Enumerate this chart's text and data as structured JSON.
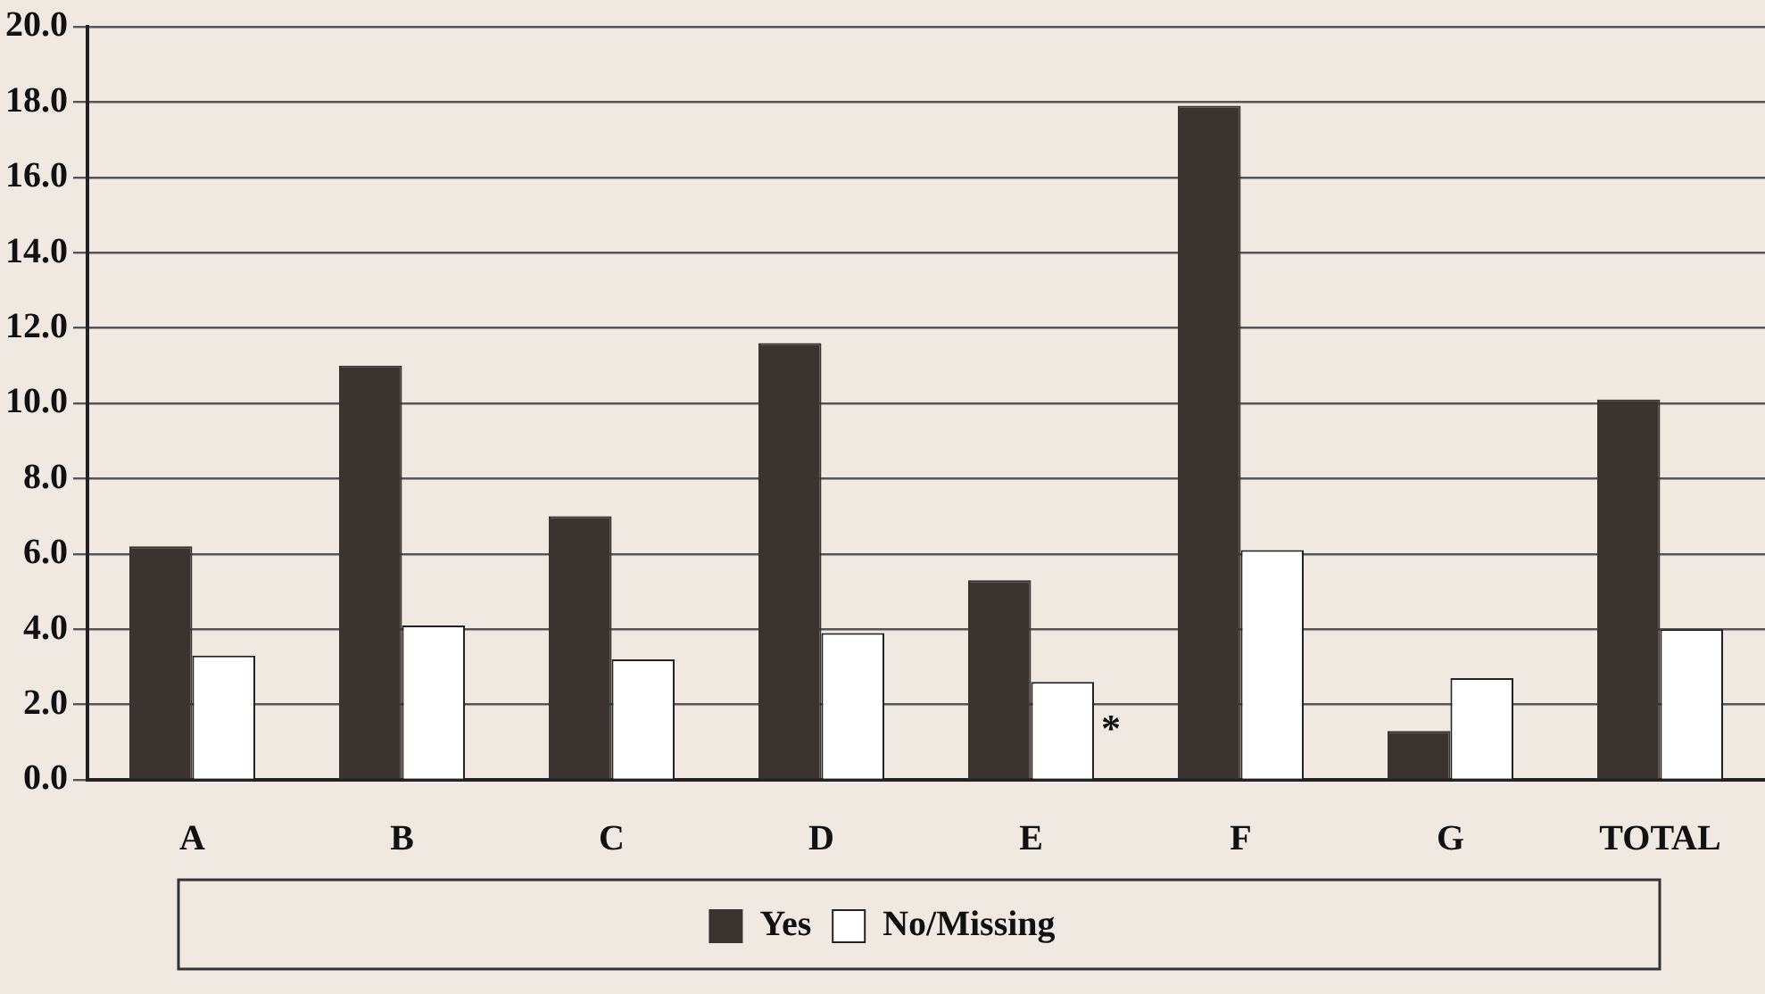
{
  "chart_data": {
    "type": "bar",
    "categories": [
      "A",
      "B",
      "C",
      "D",
      "E",
      "F",
      "G",
      "TOTAL"
    ],
    "series": [
      {
        "name": "Yes",
        "color": "#3a3330",
        "values": [
          6.2,
          11.0,
          7.0,
          11.6,
          5.3,
          17.9,
          1.3,
          10.1
        ]
      },
      {
        "name": "No/Missing",
        "color": "#ffffff",
        "values": [
          3.3,
          4.1,
          3.2,
          3.9,
          2.6,
          6.1,
          2.7,
          4.0
        ]
      }
    ],
    "ylim": [
      0,
      20
    ],
    "yticks": [
      {
        "value": 0,
        "label": "0.0"
      },
      {
        "value": 2,
        "label": "2.0"
      },
      {
        "value": 4,
        "label": "4.0"
      },
      {
        "value": 6,
        "label": "6.0"
      },
      {
        "value": 8,
        "label": "8.0"
      },
      {
        "value": 10,
        "label": "10.0"
      },
      {
        "value": 12,
        "label": "12.0"
      },
      {
        "value": 14,
        "label": "14.0"
      },
      {
        "value": 16,
        "label": "16.0"
      },
      {
        "value": 18,
        "label": "18.0"
      },
      {
        "value": 20,
        "label": "20.0"
      }
    ],
    "grid": "y",
    "legend": "bottom",
    "annotations": [
      {
        "text": "*",
        "x": "E",
        "y": 1.3
      }
    ]
  }
}
